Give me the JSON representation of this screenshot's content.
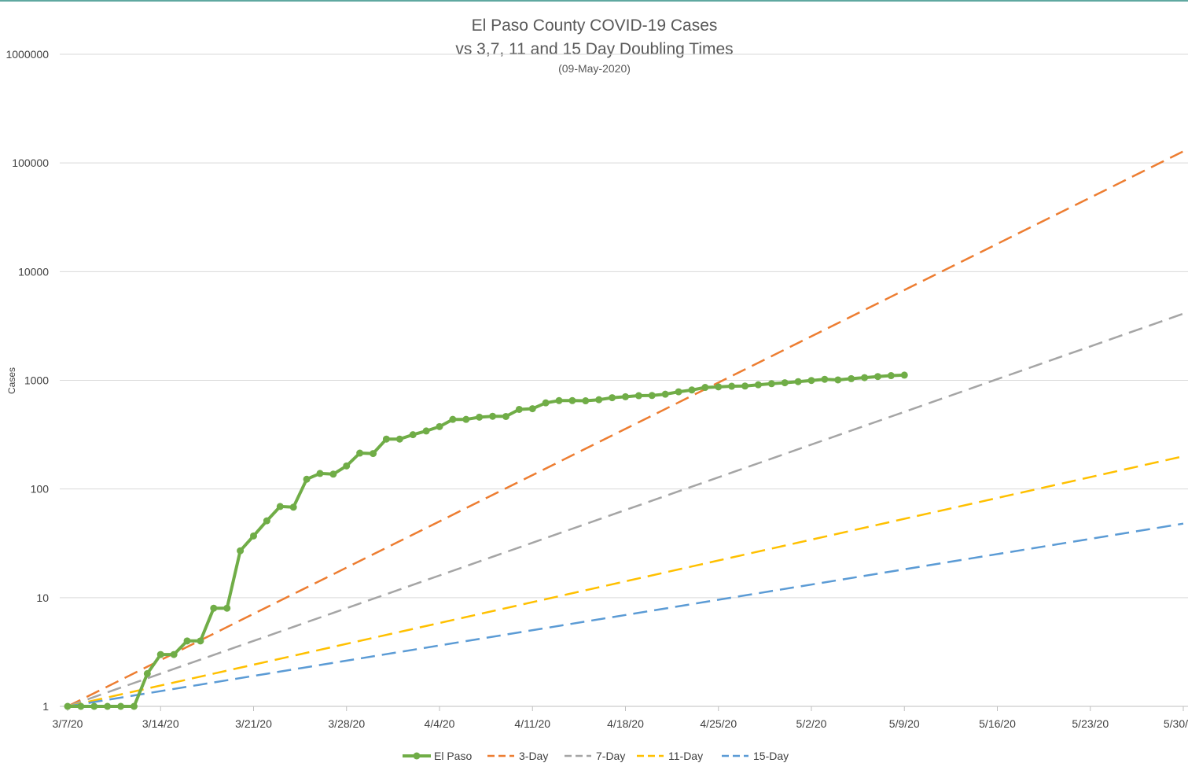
{
  "chart_data": {
    "type": "line",
    "title": "El Paso County COVID-19 Cases",
    "title_line2": "vs 3,7, 11 and 15 Day Doubling Times",
    "subtitle": "(09-May-2020)",
    "xlabel": "",
    "ylabel": "Cases",
    "y_scale": "log",
    "ylim": [
      1,
      1000000
    ],
    "y_ticks": [
      {
        "value": 1,
        "label": "1"
      },
      {
        "value": 10,
        "label": "10"
      },
      {
        "value": 100,
        "label": "100"
      },
      {
        "value": 1000,
        "label": "1000"
      },
      {
        "value": 10000,
        "label": "10000"
      },
      {
        "value": 100000,
        "label": "100000"
      },
      {
        "value": 1000000,
        "label": "1000000"
      }
    ],
    "x_range": [
      "2020-03-07",
      "2020-05-30"
    ],
    "x_ticks": [
      {
        "date": "2020-03-07",
        "label": "3/7/20"
      },
      {
        "date": "2020-03-14",
        "label": "3/14/20"
      },
      {
        "date": "2020-03-21",
        "label": "3/21/20"
      },
      {
        "date": "2020-03-28",
        "label": "3/28/20"
      },
      {
        "date": "2020-04-04",
        "label": "4/4/20"
      },
      {
        "date": "2020-04-11",
        "label": "4/11/20"
      },
      {
        "date": "2020-04-18",
        "label": "4/18/20"
      },
      {
        "date": "2020-04-25",
        "label": "4/25/20"
      },
      {
        "date": "2020-05-02",
        "label": "5/2/20"
      },
      {
        "date": "2020-05-09",
        "label": "5/9/20"
      },
      {
        "date": "2020-05-16",
        "label": "5/16/20"
      },
      {
        "date": "2020-05-23",
        "label": "5/23/20"
      },
      {
        "date": "2020-05-30",
        "label": "5/30/"
      }
    ],
    "grid": true,
    "legend_position": "bottom",
    "series": [
      {
        "name": "El Paso",
        "color": "#70ad47",
        "style": "solid-markers",
        "points": [
          {
            "x": "2020-03-07",
            "y": 1
          },
          {
            "x": "2020-03-08",
            "y": 1
          },
          {
            "x": "2020-03-09",
            "y": 1
          },
          {
            "x": "2020-03-10",
            "y": 1
          },
          {
            "x": "2020-03-11",
            "y": 1
          },
          {
            "x": "2020-03-12",
            "y": 1
          },
          {
            "x": "2020-03-13",
            "y": 2
          },
          {
            "x": "2020-03-14",
            "y": 3
          },
          {
            "x": "2020-03-15",
            "y": 3
          },
          {
            "x": "2020-03-16",
            "y": 4
          },
          {
            "x": "2020-03-17",
            "y": 4
          },
          {
            "x": "2020-03-18",
            "y": 8
          },
          {
            "x": "2020-03-19",
            "y": 8
          },
          {
            "x": "2020-03-20",
            "y": 27
          },
          {
            "x": "2020-03-21",
            "y": 37
          },
          {
            "x": "2020-03-22",
            "y": 51
          },
          {
            "x": "2020-03-23",
            "y": 69
          },
          {
            "x": "2020-03-24",
            "y": 68
          },
          {
            "x": "2020-03-25",
            "y": 123
          },
          {
            "x": "2020-03-26",
            "y": 139
          },
          {
            "x": "2020-03-27",
            "y": 137
          },
          {
            "x": "2020-03-28",
            "y": 163
          },
          {
            "x": "2020-03-29",
            "y": 214
          },
          {
            "x": "2020-03-30",
            "y": 212
          },
          {
            "x": "2020-03-31",
            "y": 288
          },
          {
            "x": "2020-04-01",
            "y": 288
          },
          {
            "x": "2020-04-02",
            "y": 316
          },
          {
            "x": "2020-04-03",
            "y": 342
          },
          {
            "x": "2020-04-04",
            "y": 375
          },
          {
            "x": "2020-04-05",
            "y": 437
          },
          {
            "x": "2020-04-06",
            "y": 437
          },
          {
            "x": "2020-04-07",
            "y": 458
          },
          {
            "x": "2020-04-08",
            "y": 467
          },
          {
            "x": "2020-04-09",
            "y": 465
          },
          {
            "x": "2020-04-10",
            "y": 540
          },
          {
            "x": "2020-04-11",
            "y": 548
          },
          {
            "x": "2020-04-12",
            "y": 620
          },
          {
            "x": "2020-04-13",
            "y": 651
          },
          {
            "x": "2020-04-14",
            "y": 651
          },
          {
            "x": "2020-04-15",
            "y": 648
          },
          {
            "x": "2020-04-16",
            "y": 663
          },
          {
            "x": "2020-04-17",
            "y": 692
          },
          {
            "x": "2020-04-18",
            "y": 706
          },
          {
            "x": "2020-04-19",
            "y": 722
          },
          {
            "x": "2020-04-20",
            "y": 725
          },
          {
            "x": "2020-04-21",
            "y": 745
          },
          {
            "x": "2020-04-22",
            "y": 784
          },
          {
            "x": "2020-04-23",
            "y": 815
          },
          {
            "x": "2020-04-24",
            "y": 860
          },
          {
            "x": "2020-04-25",
            "y": 870
          },
          {
            "x": "2020-04-26",
            "y": 882
          },
          {
            "x": "2020-04-27",
            "y": 886
          },
          {
            "x": "2020-04-28",
            "y": 910
          },
          {
            "x": "2020-04-29",
            "y": 931
          },
          {
            "x": "2020-04-30",
            "y": 950
          },
          {
            "x": "2020-05-01",
            "y": 972
          },
          {
            "x": "2020-05-02",
            "y": 996
          },
          {
            "x": "2020-05-03",
            "y": 1022
          },
          {
            "x": "2020-05-04",
            "y": 1009
          },
          {
            "x": "2020-05-05",
            "y": 1035
          },
          {
            "x": "2020-05-06",
            "y": 1058
          },
          {
            "x": "2020-05-07",
            "y": 1083
          },
          {
            "x": "2020-05-08",
            "y": 1105
          },
          {
            "x": "2020-05-09",
            "y": 1116
          }
        ]
      },
      {
        "name": "3-Day",
        "color": "#ed7d31",
        "style": "dashed",
        "points": [
          {
            "x": "2020-03-07",
            "y": 1
          },
          {
            "x": "2020-05-30",
            "y": 128000
          }
        ]
      },
      {
        "name": "7-Day",
        "color": "#a5a5a5",
        "style": "dashed",
        "points": [
          {
            "x": "2020-03-07",
            "y": 1
          },
          {
            "x": "2020-05-30",
            "y": 4100
          }
        ]
      },
      {
        "name": "11-Day",
        "color": "#ffc000",
        "style": "dashed",
        "points": [
          {
            "x": "2020-03-07",
            "y": 1
          },
          {
            "x": "2020-05-30",
            "y": 200
          }
        ]
      },
      {
        "name": "15-Day",
        "color": "#5b9bd5",
        "style": "dashed",
        "points": [
          {
            "x": "2020-03-07",
            "y": 1
          },
          {
            "x": "2020-05-30",
            "y": 48
          }
        ]
      }
    ]
  }
}
